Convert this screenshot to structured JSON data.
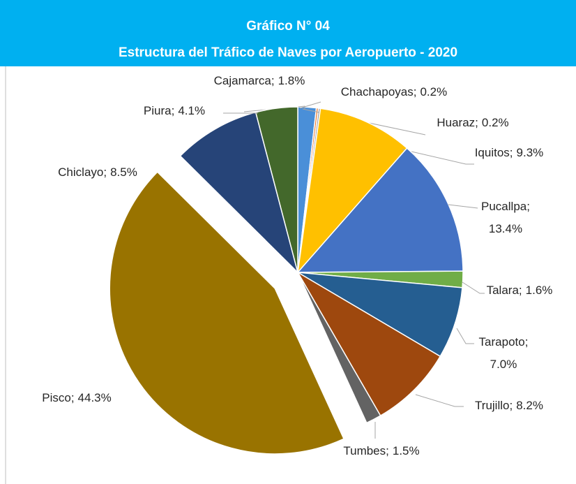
{
  "chart_data": {
    "type": "pie",
    "title": "Gráfico N° 04",
    "subtitle": "Estructura del Tráfico de Naves por Aeropuerto - 2020",
    "categories": [
      "Cajamarca",
      "Chachapoyas",
      "Huaraz",
      "Iquitos",
      "Pucallpa",
      "Talara",
      "Tarapoto",
      "Trujillo",
      "Tumbes",
      "Pisco",
      "Chiclayo",
      "Piura"
    ],
    "values": [
      1.8,
      0.2,
      0.2,
      9.3,
      13.4,
      1.6,
      7.0,
      8.2,
      1.5,
      44.3,
      8.5,
      4.1
    ],
    "value_labels": [
      "1.8%",
      "0.2%",
      "0.2%",
      "9.3%",
      "13.4%",
      "1.6%",
      "7.0%",
      "8.2%",
      "1.5%",
      "44.3%",
      "8.5%",
      "4.1%"
    ],
    "label_separator": ";",
    "colors": [
      "#4a8fd8",
      "#ed7d31",
      "#a5a5a5",
      "#ffc000",
      "#4472c4",
      "#70ad47",
      "#255e91",
      "#9e480e",
      "#636363",
      "#997300",
      "#264478",
      "#43682b"
    ],
    "exploded": "Pisco"
  }
}
